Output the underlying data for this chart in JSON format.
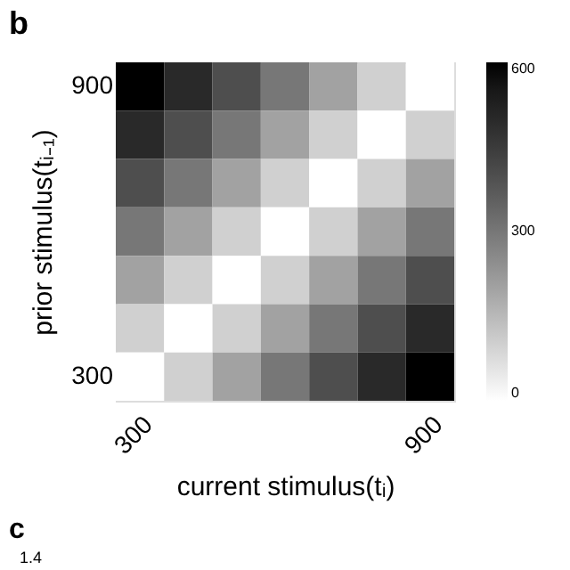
{
  "chart_data": {
    "type": "heatmap",
    "title": "b",
    "xlabel": "current stimulus(tᵢ)",
    "ylabel": "prior stimulus(tᵢ₋₁)",
    "categories": [
      "300",
      null,
      null,
      null,
      null,
      null,
      "900"
    ],
    "y_categories": [
      "900",
      null,
      null,
      null,
      null,
      null,
      "300"
    ],
    "cells": [
      [
        600,
        500,
        400,
        300,
        200,
        100,
        0
      ],
      [
        500,
        400,
        300,
        200,
        100,
        0,
        100
      ],
      [
        400,
        300,
        200,
        100,
        0,
        100,
        200
      ],
      [
        300,
        200,
        100,
        0,
        100,
        200,
        300
      ],
      [
        200,
        100,
        0,
        100,
        200,
        300,
        400
      ],
      [
        100,
        0,
        100,
        200,
        300,
        400,
        500
      ],
      [
        0,
        100,
        200,
        300,
        400,
        500,
        600
      ]
    ],
    "clim": [
      0,
      600
    ],
    "cticks": [
      0,
      300,
      600
    ],
    "annotations": [
      "c",
      "1.4"
    ]
  }
}
